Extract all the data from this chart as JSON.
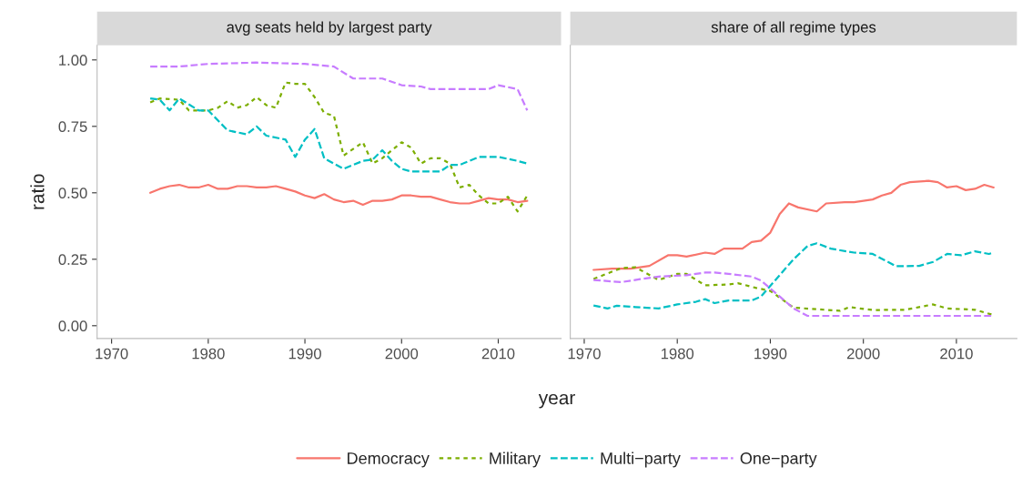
{
  "chart_data": [
    {
      "type": "line",
      "title": "avg seats held by largest party",
      "ylabel": "ratio",
      "xlabel": "year",
      "legend": "bottom",
      "xlim": [
        1968.5,
        2016.5
      ],
      "xticks": [
        1970,
        1980,
        1990,
        2000,
        2010
      ],
      "ylim": [
        -0.048,
        1.055
      ],
      "yticks": [
        {
          "value": 0,
          "label": "0.00"
        },
        {
          "value": 0.25,
          "label": "0.25"
        },
        {
          "value": 0.5,
          "label": "0.50"
        },
        {
          "value": 0.75,
          "label": "0.75"
        },
        {
          "value": 1,
          "label": "1.00"
        }
      ],
      "series": [
        {
          "name": "Democracy",
          "color": "#f8766d",
          "line_style": "solid",
          "x": [
            1974,
            1975,
            1976,
            1977,
            1978,
            1979,
            1980,
            1981,
            1982,
            1983,
            1984,
            1985,
            1986,
            1987,
            1988,
            1989,
            1990,
            1991,
            1992,
            1993,
            1994,
            1995,
            1996,
            1997,
            1998,
            1999,
            2000,
            2001,
            2002,
            2003,
            2004,
            2005,
            2006,
            2007,
            2008,
            2009,
            2010,
            2011,
            2012,
            2013
          ],
          "values": [
            0.5,
            0.515,
            0.525,
            0.53,
            0.52,
            0.52,
            0.53,
            0.515,
            0.515,
            0.525,
            0.525,
            0.52,
            0.52,
            0.525,
            0.515,
            0.505,
            0.49,
            0.48,
            0.495,
            0.475,
            0.465,
            0.47,
            0.455,
            0.47,
            0.47,
            0.475,
            0.49,
            0.49,
            0.485,
            0.485,
            0.475,
            0.465,
            0.46,
            0.46,
            0.47,
            0.48,
            0.475,
            0.475,
            0.465,
            0.47
          ]
        },
        {
          "name": "Military",
          "color": "#7cae00",
          "line_style": "dotted",
          "x": [
            1974,
            1975,
            1977,
            1978,
            1980,
            1981,
            1982,
            1983,
            1984,
            1985,
            1986,
            1987,
            1988,
            1989,
            1990,
            1991,
            1992,
            1993,
            1994,
            1996,
            1997,
            1998,
            1999,
            2000,
            2001,
            2002,
            2003,
            2004,
            2005,
            2006,
            2007,
            2008,
            2009,
            2010,
            2011,
            2012,
            2013
          ],
          "values": [
            0.84,
            0.855,
            0.85,
            0.81,
            0.81,
            0.82,
            0.845,
            0.82,
            0.83,
            0.86,
            0.83,
            0.82,
            0.915,
            0.91,
            0.91,
            0.86,
            0.8,
            0.79,
            0.64,
            0.69,
            0.61,
            0.63,
            0.66,
            0.69,
            0.67,
            0.61,
            0.63,
            0.63,
            0.61,
            0.52,
            0.53,
            0.49,
            0.46,
            0.46,
            0.485,
            0.43,
            0.49
          ]
        },
        {
          "name": "Multi−party",
          "color": "#00bfc4",
          "line_style": "dashed",
          "x": [
            1974,
            1975,
            1976,
            1977,
            1979,
            1980,
            1982,
            1984,
            1985,
            1986,
            1988,
            1989,
            1990,
            1991,
            1992,
            1994,
            1996,
            1997,
            1998,
            1999,
            2000,
            2001,
            2003,
            2004,
            2005,
            2006,
            2008,
            2010,
            2012,
            2013
          ],
          "values": [
            0.855,
            0.85,
            0.81,
            0.855,
            0.81,
            0.81,
            0.735,
            0.72,
            0.75,
            0.715,
            0.7,
            0.635,
            0.7,
            0.74,
            0.63,
            0.59,
            0.62,
            0.625,
            0.66,
            0.62,
            0.59,
            0.58,
            0.58,
            0.58,
            0.605,
            0.605,
            0.635,
            0.635,
            0.62,
            0.61
          ]
        },
        {
          "name": "One−party",
          "color": "#c77cff",
          "line_style": "dashed",
          "x": [
            1974,
            1977,
            1980,
            1985,
            1990,
            1993,
            1995,
            1998,
            2000,
            2002,
            2003,
            2009,
            2010,
            2012,
            2013
          ],
          "values": [
            0.975,
            0.975,
            0.985,
            0.99,
            0.985,
            0.975,
            0.93,
            0.93,
            0.905,
            0.9,
            0.89,
            0.89,
            0.905,
            0.89,
            0.81
          ]
        }
      ]
    },
    {
      "type": "line",
      "title": "share of all regime types",
      "tick_labels": "x",
      "xlim": [
        1968.5,
        2016.5
      ],
      "xticks": [
        1970,
        1980,
        1990,
        2000,
        2010
      ],
      "ylim": [
        -0.048,
        1.055
      ],
      "series": [
        {
          "color": "#f8766d",
          "line_style": "solid",
          "x": [
            1971,
            1973,
            1975,
            1977,
            1979,
            1980,
            1981,
            1983,
            1984,
            1985,
            1987,
            1988,
            1989,
            1990,
            1991,
            1992,
            1993,
            1995,
            1996,
            1998,
            1999,
            2001,
            2002,
            2003,
            2004,
            2005,
            2007,
            2008,
            2009,
            2010,
            2011,
            2012,
            2013,
            2014
          ],
          "values": [
            0.21,
            0.215,
            0.215,
            0.225,
            0.265,
            0.265,
            0.26,
            0.275,
            0.27,
            0.29,
            0.29,
            0.315,
            0.32,
            0.35,
            0.42,
            0.46,
            0.445,
            0.43,
            0.46,
            0.465,
            0.465,
            0.475,
            0.49,
            0.5,
            0.53,
            0.54,
            0.545,
            0.54,
            0.52,
            0.525,
            0.51,
            0.515,
            0.53,
            0.52
          ]
        },
        {
          "color": "#7cae00",
          "line_style": "dotted",
          "x": [
            1971,
            1974,
            1975.5,
            1978,
            1980,
            1981,
            1983,
            1985.5,
            1986.5,
            1988.5,
            1990,
            1992.5,
            1997.5,
            1998.5,
            2001,
            2004.5,
            2006,
            2007.5,
            2009,
            2012,
            2014
          ],
          "values": [
            0.176,
            0.217,
            0.22,
            0.172,
            0.195,
            0.195,
            0.152,
            0.155,
            0.16,
            0.142,
            0.131,
            0.068,
            0.056,
            0.07,
            0.059,
            0.06,
            0.07,
            0.08,
            0.065,
            0.06,
            0.04
          ]
        },
        {
          "color": "#00bfc4",
          "line_style": "dashed",
          "x": [
            1971,
            1972.5,
            1973.5,
            1975.5,
            1978,
            1980,
            1982,
            1983,
            1984,
            1985.5,
            1988,
            1989,
            1990.5,
            1992.5,
            1994,
            1995,
            1996.5,
            1999,
            2001,
            2003.5,
            2006,
            2007.5,
            2009,
            2010.5,
            2012,
            2013.5,
            2014
          ],
          "values": [
            0.076,
            0.065,
            0.075,
            0.07,
            0.065,
            0.08,
            0.09,
            0.1,
            0.085,
            0.095,
            0.095,
            0.11,
            0.17,
            0.25,
            0.3,
            0.31,
            0.29,
            0.275,
            0.27,
            0.224,
            0.225,
            0.24,
            0.27,
            0.265,
            0.28,
            0.27,
            0.275
          ]
        },
        {
          "color": "#c77cff",
          "line_style": "dashed",
          "x": [
            1971,
            1974,
            1976,
            1978,
            1981,
            1983,
            1984,
            1985.5,
            1988,
            1989,
            1991,
            1992.5,
            1994,
            2014
          ],
          "values": [
            0.172,
            0.164,
            0.175,
            0.185,
            0.19,
            0.2,
            0.2,
            0.195,
            0.185,
            0.17,
            0.11,
            0.065,
            0.037,
            0.037
          ]
        }
      ]
    }
  ]
}
